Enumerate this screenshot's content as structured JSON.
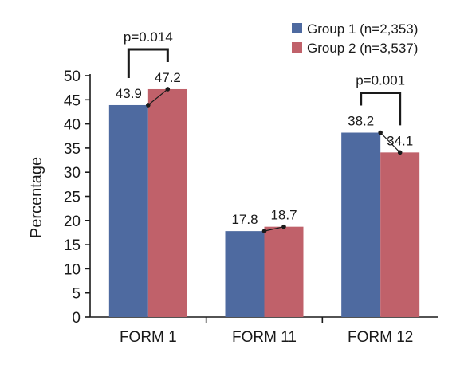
{
  "chart_data": {
    "type": "bar",
    "categories": [
      "FORM 1",
      "FORM 11",
      "FORM 12"
    ],
    "series": [
      {
        "name": "Group 1 (n=2,353)",
        "color": "#4e6aa0",
        "values": [
          43.9,
          17.8,
          38.2
        ],
        "labels": [
          "43.9",
          "17.8",
          "38.2"
        ]
      },
      {
        "name": "Group 2 (n=3,537)",
        "color": "#c0616a",
        "values": [
          47.2,
          18.7,
          34.1
        ],
        "labels": [
          "47.2",
          "18.7",
          "34.1"
        ]
      }
    ],
    "ylabel": "Percentage",
    "xlabel": "",
    "ylim": [
      0,
      50
    ],
    "yticks": [
      0,
      5,
      10,
      15,
      20,
      25,
      30,
      35,
      40,
      45,
      50
    ],
    "legend_position": "top-right",
    "grid": false,
    "annotations": [
      {
        "category_index": 0,
        "text": "p=0.014"
      },
      {
        "category_index": 2,
        "text": "p=0.001"
      }
    ]
  }
}
